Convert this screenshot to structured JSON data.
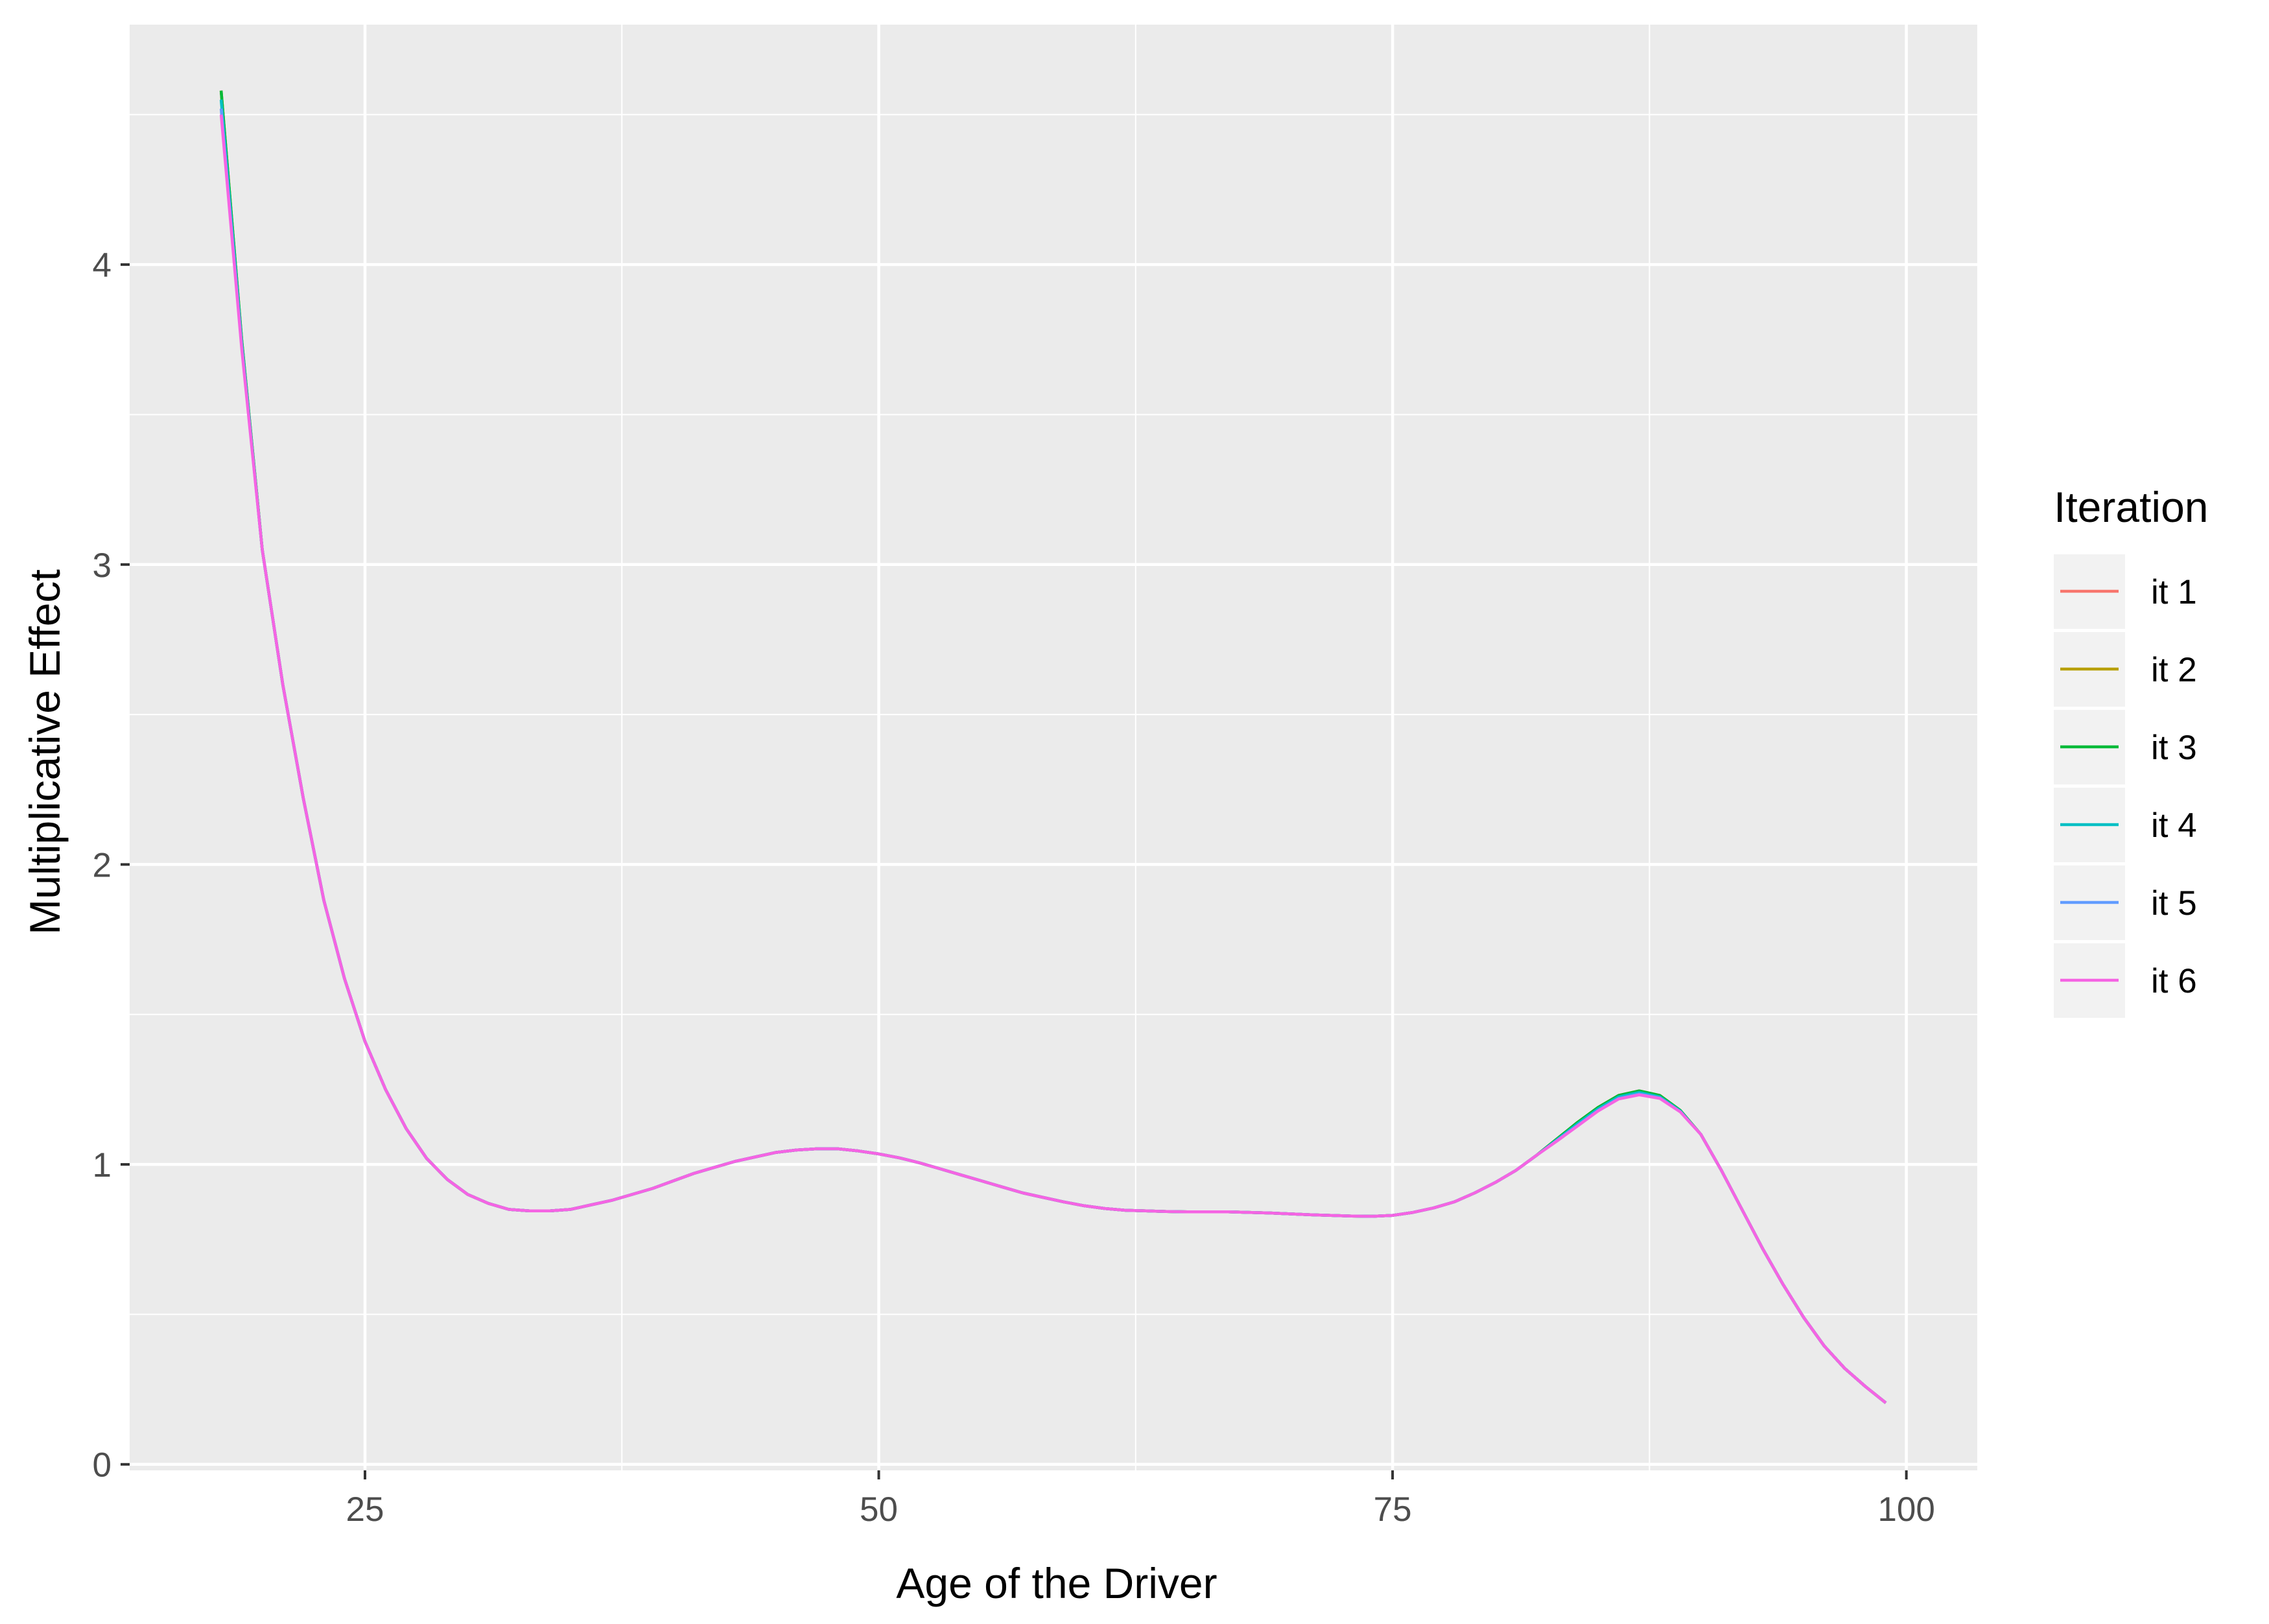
{
  "chart_data": {
    "type": "line",
    "title": "",
    "xlabel": "Age of the Driver",
    "ylabel": "Multiplicative Effect",
    "xlim": [
      13.55,
      103.45
    ],
    "ylim": [
      -0.02,
      4.8
    ],
    "x_ticks": [
      25,
      50,
      75,
      100
    ],
    "y_ticks": [
      0,
      1,
      2,
      3,
      4
    ],
    "x_minor_ticks": [
      37.5,
      62.5,
      87.5
    ],
    "y_minor_ticks": [
      0.5,
      1.5,
      2.5,
      3.5,
      4.5
    ],
    "grid": true,
    "panel_background": "#ebebeb",
    "legend": {
      "title": "Iteration",
      "position": "right",
      "entries": [
        "it 1",
        "it 2",
        "it 3",
        "it 4",
        "it 5",
        "it 6"
      ]
    },
    "x": [
      18,
      19,
      20,
      21,
      22,
      23,
      24,
      25,
      26,
      27,
      28,
      29,
      30,
      31,
      32,
      33,
      34,
      35,
      36,
      37,
      38,
      39,
      40,
      41,
      42,
      43,
      44,
      45,
      46,
      47,
      48,
      49,
      50,
      51,
      52,
      53,
      54,
      55,
      56,
      57,
      58,
      59,
      60,
      61,
      62,
      63,
      64,
      65,
      66,
      67,
      68,
      69,
      70,
      71,
      72,
      73,
      74,
      75,
      76,
      77,
      78,
      79,
      80,
      81,
      82,
      83,
      84,
      85,
      86,
      87,
      88,
      89,
      90,
      91,
      92,
      93,
      94,
      95,
      96,
      97,
      98,
      99
    ],
    "series": [
      {
        "name": "it 1",
        "color": "#F8766D",
        "values": [
          4.58,
          3.75,
          3.05,
          2.6,
          2.22,
          1.88,
          1.62,
          1.41,
          1.25,
          1.12,
          1.02,
          0.95,
          0.9,
          0.87,
          0.85,
          0.845,
          0.845,
          0.85,
          0.865,
          0.88,
          0.9,
          0.92,
          0.945,
          0.97,
          0.99,
          1.01,
          1.025,
          1.04,
          1.048,
          1.052,
          1.052,
          1.045,
          1.035,
          1.022,
          1.005,
          0.985,
          0.965,
          0.945,
          0.925,
          0.905,
          0.89,
          0.875,
          0.862,
          0.853,
          0.847,
          0.845,
          0.843,
          0.842,
          0.842,
          0.842,
          0.84,
          0.838,
          0.835,
          0.832,
          0.83,
          0.828,
          0.827,
          0.83,
          0.84,
          0.855,
          0.875,
          0.905,
          0.94,
          0.98,
          1.03,
          1.085,
          1.14,
          1.19,
          1.23,
          1.245,
          1.23,
          1.18,
          1.1,
          0.98,
          0.85,
          0.72,
          0.6,
          0.49,
          0.395,
          0.32,
          0.26,
          0.205
        ]
      },
      {
        "name": "it 2",
        "color": "#B79F00",
        "values": [
          4.58,
          3.75,
          3.05,
          2.6,
          2.22,
          1.88,
          1.62,
          1.41,
          1.25,
          1.12,
          1.02,
          0.95,
          0.9,
          0.87,
          0.85,
          0.845,
          0.845,
          0.85,
          0.865,
          0.88,
          0.9,
          0.92,
          0.945,
          0.97,
          0.99,
          1.01,
          1.025,
          1.04,
          1.048,
          1.052,
          1.052,
          1.045,
          1.035,
          1.022,
          1.005,
          0.985,
          0.965,
          0.945,
          0.925,
          0.905,
          0.89,
          0.875,
          0.862,
          0.853,
          0.847,
          0.845,
          0.843,
          0.842,
          0.842,
          0.842,
          0.84,
          0.838,
          0.835,
          0.832,
          0.83,
          0.828,
          0.827,
          0.83,
          0.84,
          0.855,
          0.875,
          0.905,
          0.94,
          0.98,
          1.03,
          1.085,
          1.14,
          1.19,
          1.23,
          1.245,
          1.23,
          1.18,
          1.1,
          0.98,
          0.85,
          0.72,
          0.6,
          0.49,
          0.395,
          0.32,
          0.26,
          0.205
        ]
      },
      {
        "name": "it 3",
        "color": "#00BA38",
        "values": [
          4.58,
          3.75,
          3.05,
          2.6,
          2.22,
          1.88,
          1.62,
          1.41,
          1.25,
          1.12,
          1.02,
          0.95,
          0.9,
          0.87,
          0.85,
          0.845,
          0.845,
          0.85,
          0.865,
          0.88,
          0.9,
          0.92,
          0.945,
          0.97,
          0.99,
          1.01,
          1.025,
          1.04,
          1.048,
          1.052,
          1.052,
          1.045,
          1.035,
          1.022,
          1.005,
          0.985,
          0.965,
          0.945,
          0.925,
          0.905,
          0.89,
          0.875,
          0.862,
          0.853,
          0.847,
          0.845,
          0.843,
          0.842,
          0.842,
          0.842,
          0.84,
          0.838,
          0.835,
          0.832,
          0.83,
          0.828,
          0.827,
          0.83,
          0.84,
          0.855,
          0.875,
          0.905,
          0.94,
          0.98,
          1.03,
          1.085,
          1.14,
          1.19,
          1.23,
          1.245,
          1.23,
          1.18,
          1.1,
          0.98,
          0.85,
          0.72,
          0.6,
          0.49,
          0.395,
          0.32,
          0.26,
          0.205
        ]
      },
      {
        "name": "it 4",
        "color": "#00BFC4",
        "values": [
          4.55,
          3.74,
          3.05,
          2.6,
          2.22,
          1.88,
          1.62,
          1.41,
          1.25,
          1.12,
          1.02,
          0.95,
          0.9,
          0.87,
          0.85,
          0.845,
          0.845,
          0.85,
          0.865,
          0.88,
          0.9,
          0.92,
          0.945,
          0.97,
          0.99,
          1.01,
          1.025,
          1.04,
          1.048,
          1.052,
          1.052,
          1.045,
          1.035,
          1.022,
          1.005,
          0.985,
          0.965,
          0.945,
          0.925,
          0.905,
          0.89,
          0.875,
          0.862,
          0.853,
          0.847,
          0.845,
          0.843,
          0.842,
          0.842,
          0.842,
          0.84,
          0.838,
          0.835,
          0.832,
          0.83,
          0.828,
          0.827,
          0.83,
          0.84,
          0.855,
          0.875,
          0.905,
          0.94,
          0.98,
          1.03,
          1.082,
          1.135,
          1.185,
          1.225,
          1.24,
          1.225,
          1.178,
          1.1,
          0.98,
          0.85,
          0.72,
          0.6,
          0.49,
          0.395,
          0.32,
          0.26,
          0.205
        ]
      },
      {
        "name": "it 5",
        "color": "#619CFF",
        "values": [
          4.52,
          3.73,
          3.05,
          2.6,
          2.22,
          1.88,
          1.62,
          1.41,
          1.25,
          1.12,
          1.02,
          0.95,
          0.9,
          0.87,
          0.85,
          0.845,
          0.845,
          0.85,
          0.865,
          0.88,
          0.9,
          0.92,
          0.945,
          0.97,
          0.99,
          1.01,
          1.025,
          1.04,
          1.048,
          1.052,
          1.052,
          1.045,
          1.035,
          1.022,
          1.005,
          0.985,
          0.965,
          0.945,
          0.925,
          0.905,
          0.89,
          0.875,
          0.862,
          0.853,
          0.847,
          0.845,
          0.843,
          0.842,
          0.842,
          0.842,
          0.84,
          0.838,
          0.835,
          0.832,
          0.83,
          0.828,
          0.827,
          0.83,
          0.84,
          0.855,
          0.875,
          0.905,
          0.94,
          0.98,
          1.03,
          1.08,
          1.13,
          1.18,
          1.22,
          1.235,
          1.222,
          1.176,
          1.1,
          0.98,
          0.85,
          0.72,
          0.6,
          0.49,
          0.395,
          0.32,
          0.26,
          0.205
        ]
      },
      {
        "name": "it 6",
        "color": "#F564E3",
        "values": [
          4.5,
          3.72,
          3.05,
          2.6,
          2.22,
          1.88,
          1.62,
          1.41,
          1.25,
          1.12,
          1.02,
          0.95,
          0.9,
          0.87,
          0.85,
          0.845,
          0.845,
          0.85,
          0.865,
          0.88,
          0.9,
          0.92,
          0.945,
          0.97,
          0.99,
          1.01,
          1.025,
          1.04,
          1.048,
          1.052,
          1.052,
          1.045,
          1.035,
          1.022,
          1.005,
          0.985,
          0.965,
          0.945,
          0.925,
          0.905,
          0.89,
          0.875,
          0.862,
          0.853,
          0.847,
          0.845,
          0.843,
          0.842,
          0.842,
          0.842,
          0.84,
          0.838,
          0.835,
          0.832,
          0.83,
          0.828,
          0.827,
          0.83,
          0.84,
          0.855,
          0.875,
          0.905,
          0.94,
          0.98,
          1.03,
          1.078,
          1.128,
          1.178,
          1.218,
          1.232,
          1.22,
          1.175,
          1.1,
          0.98,
          0.85,
          0.72,
          0.6,
          0.49,
          0.395,
          0.32,
          0.26,
          0.205
        ]
      }
    ]
  }
}
